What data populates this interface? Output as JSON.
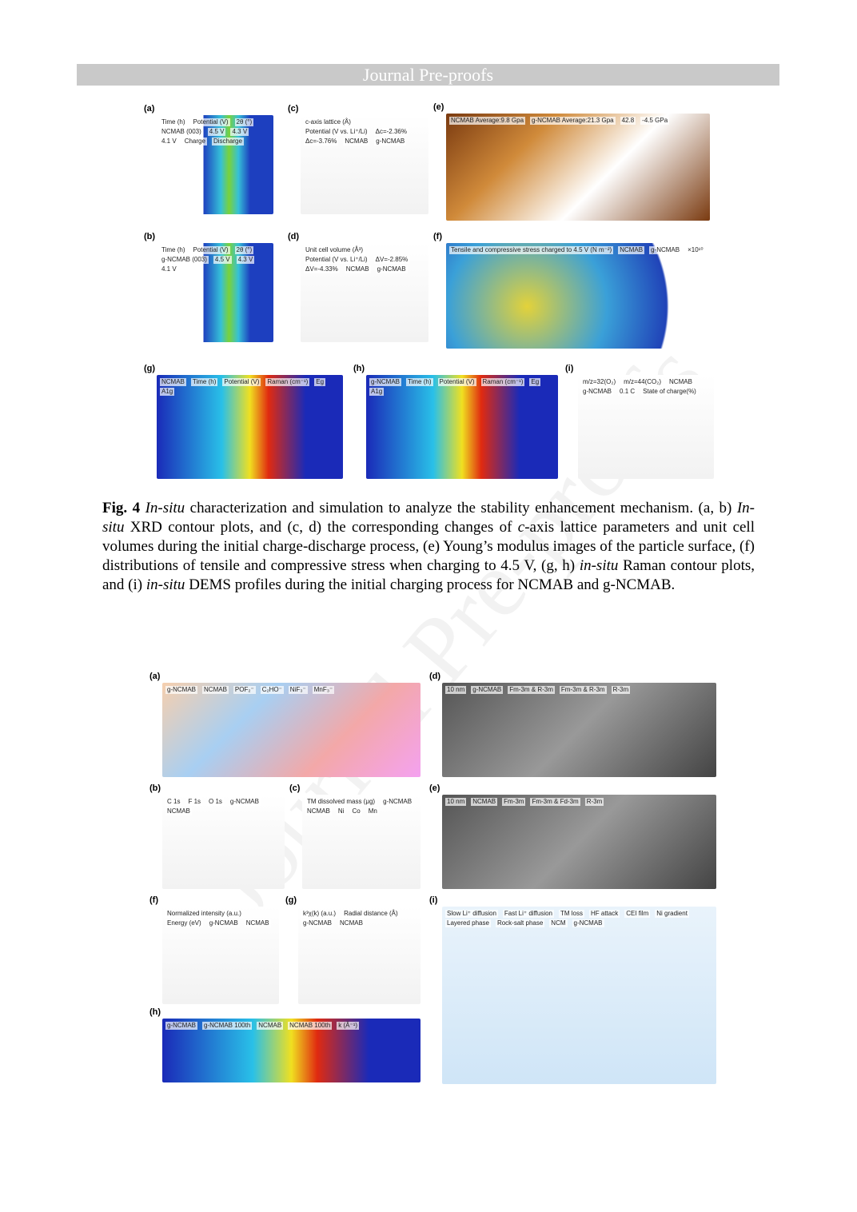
{
  "header": {
    "title": "Journal Pre-proofs"
  },
  "watermark": "Journal Pre-proofs",
  "figure4": {
    "panels": [
      {
        "label": "(a)",
        "texts": [
          "Time (h)",
          "Potential (V)",
          "2θ (°)",
          "NCMAB (003)",
          "4.5 V",
          "4.3 V",
          "4.1 V",
          "Charge",
          "Discharge"
        ]
      },
      {
        "label": "(b)",
        "texts": [
          "Time (h)",
          "Potential (V)",
          "2θ (°)",
          "g-NCMAB (003)",
          "4.5 V",
          "4.3 V",
          "4.1 V"
        ]
      },
      {
        "label": "(c)",
        "texts": [
          "c-axis lattice (Å)",
          "Potential (V vs. Li⁺/Li)",
          "Δc=-2.36%",
          "Δc=-3.76%",
          "NCMAB",
          "g-NCMAB"
        ]
      },
      {
        "label": "(d)",
        "texts": [
          "Unit cell volume (Å³)",
          "Potential (V vs. Li⁺/Li)",
          "ΔV=-2.85%",
          "ΔV=-4.33%",
          "NCMAB",
          "g-NCMAB"
        ]
      },
      {
        "label": "(e)",
        "texts": [
          "NCMAB Average:9.8 Gpa",
          "g-NCMAB Average:21.3 Gpa",
          "42.8",
          "-4.5 GPa"
        ]
      },
      {
        "label": "(f)",
        "texts": [
          "Tensile and compressive stress charged to 4.5 V (N m⁻²)",
          "NCMAB",
          "g-NCMAB",
          "×10¹⁰"
        ]
      },
      {
        "label": "(g)",
        "texts": [
          "NCMAB",
          "Time (h)",
          "Potential (V)",
          "Raman (cm⁻¹)",
          "Eg",
          "A1g"
        ]
      },
      {
        "label": "(h)",
        "texts": [
          "g-NCMAB",
          "Time (h)",
          "Potential (V)",
          "Raman (cm⁻¹)",
          "Eg",
          "A1g"
        ]
      },
      {
        "label": "(i)",
        "texts": [
          "m/z=32(O₂)",
          "m/z=44(CO₂)",
          "NCMAB",
          "g-NCMAB",
          "0.1 C",
          "State of charge(%)"
        ]
      }
    ]
  },
  "caption": {
    "segments": [
      {
        "text": "Fig. 4 ",
        "bold": true,
        "italic": false
      },
      {
        "text": "In-situ",
        "bold": false,
        "italic": true
      },
      {
        "text": " characterization and simulation to analyze the stability enhancement mechanism. (a, b) ",
        "bold": false,
        "italic": false
      },
      {
        "text": "In-situ",
        "bold": false,
        "italic": true
      },
      {
        "text": " XRD contour plots, and (c, d) the corresponding changes of ",
        "bold": false,
        "italic": false
      },
      {
        "text": "c",
        "bold": false,
        "italic": true
      },
      {
        "text": "-axis lattice parameters and unit cell volumes during the initial charge-discharge process, (e) Young’s modulus images of the particle surface, (f) distributions of tensile and compressive stress when charging to 4.5 V, (g, h) ",
        "bold": false,
        "italic": false
      },
      {
        "text": "in-situ",
        "bold": false,
        "italic": true
      },
      {
        "text": " Raman contour plots, and (i) ",
        "bold": false,
        "italic": false
      },
      {
        "text": "in-situ",
        "bold": false,
        "italic": true
      },
      {
        "text": " DEMS profiles during the initial charging process for NCMAB and g-NCMAB.",
        "bold": false,
        "italic": false
      }
    ]
  },
  "figure5": {
    "panels": [
      {
        "label": "(a)",
        "texts": [
          "g-NCMAB",
          "NCMAB",
          "POF₂⁻",
          "C₂HO⁻",
          "NiF₃⁻",
          "MnF₃⁻"
        ]
      },
      {
        "label": "(b)",
        "texts": [
          "C 1s",
          "F 1s",
          "O 1s",
          "g-NCMAB",
          "NCMAB"
        ]
      },
      {
        "label": "(c)",
        "texts": [
          "TM dissolved mass (μg)",
          "g-NCMAB",
          "NCMAB",
          "Ni",
          "Co",
          "Mn"
        ]
      },
      {
        "label": "(d)",
        "texts": [
          "10 nm",
          "g-NCMAB",
          "Fm-3m & R-3m",
          "Fm-3m & R-3m",
          "R-3m"
        ]
      },
      {
        "label": "(e)",
        "texts": [
          "10 nm",
          "NCMAB",
          "Fm-3m",
          "Fm-3m & Fd-3m",
          "R-3m"
        ]
      },
      {
        "label": "(f)",
        "texts": [
          "Normalized intensity (a.u.)",
          "Energy (eV)",
          "g-NCMAB",
          "NCMAB"
        ]
      },
      {
        "label": "(g)",
        "texts": [
          "k³χ(k) (a.u.)",
          "Radial distance (Å)",
          "g-NCMAB",
          "NCMAB"
        ]
      },
      {
        "label": "(h)",
        "texts": [
          "g-NCMAB",
          "g-NCMAB 100th",
          "NCMAB",
          "NCMAB 100th",
          "k (Å⁻¹)"
        ]
      },
      {
        "label": "(i)",
        "texts": [
          "Slow Li⁺ diffusion",
          "Fast Li⁺ diffusion",
          "TM loss",
          "HF attack",
          "CEI film",
          "Ni gradient",
          "Layered phase",
          "Rock-salt phase",
          "NCM",
          "g-NCMAB"
        ]
      }
    ]
  }
}
